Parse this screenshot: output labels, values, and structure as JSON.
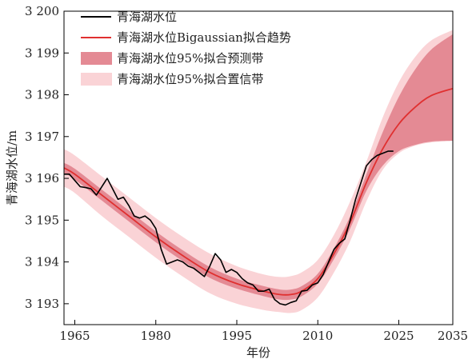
{
  "chart_data": {
    "type": "line",
    "xlabel": "年份",
    "ylabel": "青海湖水位/m",
    "xlim": [
      1963,
      2035
    ],
    "ylim": [
      3192.5,
      3200
    ],
    "x_ticks": [
      1965,
      1980,
      1995,
      2010,
      2025,
      2035
    ],
    "x_tick_labels": [
      "1965",
      "1980",
      "1995",
      "2010",
      "2025",
      "2035"
    ],
    "y_ticks": [
      3193,
      3194,
      3195,
      3196,
      3197,
      3198,
      3199,
      3200
    ],
    "y_tick_labels": [
      "3 193",
      "3 194",
      "3 195",
      "3 196",
      "3 197",
      "3 198",
      "3 199",
      "3 200"
    ],
    "legend_position": "top-left",
    "legend": [
      {
        "label": "青海湖水位",
        "kind": "line",
        "color": "#000000"
      },
      {
        "label": "青海湖水位Bigaussian拟合趋势",
        "kind": "line",
        "color": "#e03030"
      },
      {
        "label": "青海湖水位95%拟合预测带",
        "kind": "patch",
        "color": "#e48a94"
      },
      {
        "label": "青海湖水位95%拟合置信带",
        "kind": "patch",
        "color": "#fad3d6"
      }
    ],
    "series": [
      {
        "name": "青海湖水位",
        "color": "#000000",
        "x": [
          1963,
          1964,
          1965,
          1966,
          1967,
          1968,
          1969,
          1970,
          1971,
          1972,
          1973,
          1974,
          1975,
          1976,
          1977,
          1978,
          1979,
          1980,
          1981,
          1982,
          1983,
          1984,
          1985,
          1986,
          1987,
          1988,
          1989,
          1990,
          1991,
          1992,
          1993,
          1994,
          1995,
          1996,
          1997,
          1998,
          1999,
          2000,
          2001,
          2002,
          2003,
          2004,
          2005,
          2006,
          2007,
          2008,
          2009,
          2010,
          2011,
          2012,
          2013,
          2014,
          2015,
          2016,
          2017,
          2018,
          2019,
          2020,
          2021,
          2022,
          2023,
          2024
        ],
        "y": [
          3196.1,
          3196.1,
          3195.95,
          3195.8,
          3195.78,
          3195.75,
          3195.6,
          3195.8,
          3196.0,
          3195.75,
          3195.5,
          3195.55,
          3195.35,
          3195.1,
          3195.05,
          3195.1,
          3195.0,
          3194.8,
          3194.3,
          3193.95,
          3194.0,
          3194.05,
          3194.0,
          3193.9,
          3193.85,
          3193.75,
          3193.65,
          3193.9,
          3194.2,
          3194.05,
          3193.75,
          3193.82,
          3193.75,
          3193.6,
          3193.5,
          3193.45,
          3193.3,
          3193.3,
          3193.35,
          3193.1,
          3193.0,
          3192.97,
          3193.03,
          3193.07,
          3193.3,
          3193.32,
          3193.45,
          3193.5,
          3193.7,
          3194.0,
          3194.3,
          3194.45,
          3194.55,
          3195.0,
          3195.5,
          3195.9,
          3196.3,
          3196.45,
          3196.55,
          3196.6,
          3196.65,
          3196.65
        ]
      },
      {
        "name": "青海湖水位Bigaussian拟合趋势",
        "color": "#e03030",
        "x": [
          1963,
          1965,
          1970,
          1975,
          1980,
          1985,
          1990,
          1995,
          2000,
          2003,
          2005,
          2007,
          2010,
          2013,
          2016,
          2019,
          2022,
          2025,
          2028,
          2031,
          2035
        ],
        "y": [
          3196.25,
          3196.1,
          3195.6,
          3195.1,
          3194.6,
          3194.15,
          3193.75,
          3193.48,
          3193.3,
          3193.22,
          3193.22,
          3193.3,
          3193.6,
          3194.2,
          3194.95,
          3195.9,
          3196.7,
          3197.3,
          3197.7,
          3197.98,
          3198.15
        ]
      }
    ],
    "prediction_band_95": {
      "color": "#e48a94",
      "x": [
        1963,
        1965,
        1970,
        1975,
        1980,
        1985,
        1990,
        1995,
        2000,
        2003,
        2005,
        2007,
        2010,
        2013,
        2016,
        2019,
        2022,
        2025,
        2028,
        2031,
        2035
      ],
      "lower": [
        3196.13,
        3195.97,
        3195.47,
        3194.97,
        3194.47,
        3194.02,
        3193.62,
        3193.36,
        3193.18,
        3193.1,
        3193.1,
        3193.18,
        3193.48,
        3194.07,
        3194.8,
        3195.7,
        3196.3,
        3196.65,
        3196.8,
        3196.88,
        3196.9
      ],
      "upper": [
        3196.37,
        3196.23,
        3195.73,
        3195.23,
        3194.73,
        3194.28,
        3193.88,
        3193.6,
        3193.42,
        3193.34,
        3193.34,
        3193.42,
        3193.72,
        3194.33,
        3195.1,
        3196.1,
        3197.1,
        3197.95,
        3198.6,
        3199.08,
        3199.45
      ]
    },
    "confidence_band_95": {
      "color": "#fad3d6",
      "x": [
        1963,
        1965,
        1970,
        1975,
        1980,
        1985,
        1990,
        1995,
        2000,
        2003,
        2005,
        2007,
        2010,
        2013,
        2016,
        2019,
        2022,
        2025,
        2028,
        2031,
        2035
      ],
      "lower": [
        3195.8,
        3195.65,
        3195.1,
        3194.6,
        3194.1,
        3193.65,
        3193.25,
        3193.0,
        3192.85,
        3192.8,
        3192.78,
        3192.85,
        3193.15,
        3193.75,
        3194.5,
        3195.45,
        3196.2,
        3196.6,
        3196.78,
        3196.86,
        3196.9
      ],
      "upper": [
        3196.7,
        3196.55,
        3196.05,
        3195.55,
        3195.05,
        3194.6,
        3194.2,
        3193.9,
        3193.7,
        3193.64,
        3193.66,
        3193.75,
        3194.05,
        3194.65,
        3195.45,
        3196.4,
        3197.45,
        3198.3,
        3198.9,
        3199.3,
        3199.55
      ]
    }
  }
}
